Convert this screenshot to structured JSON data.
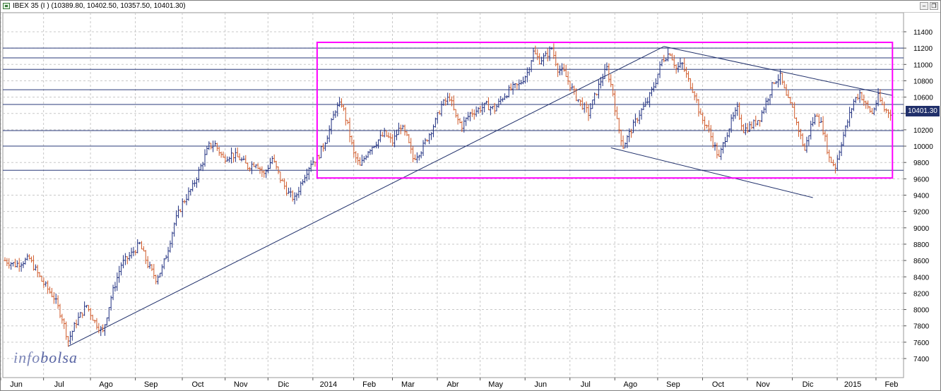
{
  "window": {
    "title": "IBEX 35 (I ) (10389.80, 10402.50, 10357.50, 10401.30)",
    "restore_icon": "restore-window-icon",
    "minimize_icon": "minimize-window-icon"
  },
  "watermark": {
    "part1": "info",
    "part2": "bolsa"
  },
  "price_tag": "10401.30",
  "colors": {
    "up_bar": "#1f2f80",
    "down_bar": "#d05a2a",
    "channel_box": "#ff00ff",
    "trendline": "#1f2f6a",
    "hline": "#2a3a7a",
    "grid": "#c8c8c8",
    "price_tag_bg": "#21306b"
  },
  "chart_data": {
    "type": "ohlc",
    "title": "IBEX 35 (I ) (10389.80, 10402.50, 10357.50, 10401.30)",
    "last_close": 10401.3,
    "y_ticks": [
      7400,
      7600,
      7800,
      8000,
      8200,
      8400,
      8600,
      8800,
      9000,
      9200,
      9400,
      9600,
      9800,
      10000,
      10200,
      10400,
      10600,
      10800,
      11000,
      11200,
      11400
    ],
    "ylim": [
      7200,
      11550
    ],
    "x_labels": [
      "Jun",
      "Jul",
      "Ago",
      "Sep",
      "Oct",
      "Nov",
      "Dic",
      "2014",
      "Feb",
      "Mar",
      "Abr",
      "May",
      "Jun",
      "Jul",
      "Ago",
      "Sep",
      "Oct",
      "Nov",
      "Dic",
      "2015",
      "Feb"
    ],
    "x_label_positions": [
      0,
      21,
      44,
      66,
      89,
      110,
      131,
      153,
      173,
      192,
      214,
      235,
      257,
      279,
      301,
      322,
      344,
      366,
      388,
      410,
      429
    ],
    "bar_count": 440,
    "anchors": [
      [
        0,
        8600
      ],
      [
        5,
        8550
      ],
      [
        12,
        8620
      ],
      [
        18,
        8350
      ],
      [
        24,
        8150
      ],
      [
        28,
        7900
      ],
      [
        31,
        7620
      ],
      [
        35,
        7850
      ],
      [
        40,
        8050
      ],
      [
        44,
        7850
      ],
      [
        48,
        7720
      ],
      [
        52,
        8150
      ],
      [
        57,
        8550
      ],
      [
        62,
        8680
      ],
      [
        66,
        8800
      ],
      [
        70,
        8550
      ],
      [
        74,
        8380
      ],
      [
        77,
        8500
      ],
      [
        80,
        8750
      ],
      [
        83,
        9050
      ],
      [
        87,
        9300
      ],
      [
        92,
        9500
      ],
      [
        96,
        9750
      ],
      [
        100,
        10000
      ],
      [
        103,
        10020
      ],
      [
        107,
        9850
      ],
      [
        111,
        9900
      ],
      [
        115,
        9850
      ],
      [
        119,
        9750
      ],
      [
        123,
        9800
      ],
      [
        127,
        9650
      ],
      [
        131,
        9850
      ],
      [
        135,
        9600
      ],
      [
        139,
        9420
      ],
      [
        142,
        9350
      ],
      [
        146,
        9600
      ],
      [
        150,
        9800
      ],
      [
        153,
        9850
      ],
      [
        156,
        10000
      ],
      [
        159,
        10200
      ],
      [
        162,
        10450
      ],
      [
        165,
        10520
      ],
      [
        168,
        10250
      ],
      [
        171,
        9900
      ],
      [
        174,
        9750
      ],
      [
        178,
        9950
      ],
      [
        182,
        10050
      ],
      [
        186,
        10150
      ],
      [
        190,
        10050
      ],
      [
        194,
        10250
      ],
      [
        197,
        10100
      ],
      [
        200,
        9850
      ],
      [
        204,
        9950
      ],
      [
        208,
        10150
      ],
      [
        211,
        10300
      ],
      [
        214,
        10500
      ],
      [
        218,
        10600
      ],
      [
        221,
        10350
      ],
      [
        224,
        10250
      ],
      [
        228,
        10400
      ],
      [
        232,
        10450
      ],
      [
        236,
        10500
      ],
      [
        240,
        10450
      ],
      [
        244,
        10600
      ],
      [
        248,
        10700
      ],
      [
        252,
        10750
      ],
      [
        256,
        10900
      ],
      [
        259,
        11150
      ],
      [
        262,
        11050
      ],
      [
        265,
        11100
      ],
      [
        268,
        11200
      ],
      [
        271,
        10950
      ],
      [
        274,
        10900
      ],
      [
        277,
        10750
      ],
      [
        280,
        10600
      ],
      [
        283,
        10500
      ],
      [
        286,
        10400
      ],
      [
        289,
        10600
      ],
      [
        292,
        10800
      ],
      [
        295,
        10950
      ],
      [
        298,
        10650
      ],
      [
        300,
        10300
      ],
      [
        303,
        10000
      ],
      [
        307,
        10200
      ],
      [
        311,
        10400
      ],
      [
        315,
        10550
      ],
      [
        319,
        10800
      ],
      [
        322,
        11050
      ],
      [
        326,
        11150
      ],
      [
        329,
        10950
      ],
      [
        332,
        11000
      ],
      [
        335,
        10800
      ],
      [
        338,
        10650
      ],
      [
        341,
        10350
      ],
      [
        344,
        10250
      ],
      [
        347,
        10050
      ],
      [
        350,
        9850
      ],
      [
        353,
        10100
      ],
      [
        356,
        10300
      ],
      [
        359,
        10450
      ],
      [
        362,
        10200
      ],
      [
        366,
        10250
      ],
      [
        370,
        10350
      ],
      [
        374,
        10600
      ],
      [
        377,
        10800
      ],
      [
        380,
        10850
      ],
      [
        383,
        10600
      ],
      [
        386,
        10450
      ],
      [
        389,
        10200
      ],
      [
        392,
        9950
      ],
      [
        395,
        10250
      ],
      [
        398,
        10400
      ],
      [
        401,
        10200
      ],
      [
        404,
        9850
      ],
      [
        407,
        9750
      ],
      [
        410,
        10050
      ],
      [
        413,
        10300
      ],
      [
        416,
        10550
      ],
      [
        419,
        10650
      ],
      [
        422,
        10500
      ],
      [
        425,
        10400
      ],
      [
        428,
        10600
      ],
      [
        431,
        10450
      ],
      [
        435,
        10401
      ]
    ],
    "horizontal_lines": [
      11200,
      11080,
      10940,
      10690,
      10510,
      10190,
      10000,
      9705
    ],
    "channel_rectangle": {
      "x": [
        153,
        435
      ],
      "y": [
        9610,
        11270
      ]
    },
    "trendlines": [
      {
        "from": [
          31,
          7550
        ],
        "to": [
          323,
          11220
        ]
      },
      {
        "from": [
          323,
          11220
        ],
        "to": [
          435,
          10620
        ]
      },
      {
        "from": [
          297,
          9980
        ],
        "to": [
          396,
          9370
        ]
      }
    ],
    "grid": true
  }
}
